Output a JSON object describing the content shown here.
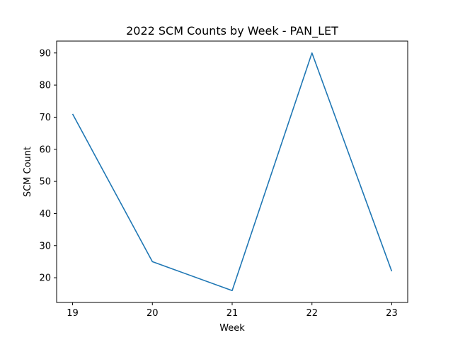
{
  "chart_data": {
    "type": "line",
    "title": "2022 SCM Counts by Week - PAN_LET",
    "xlabel": "Week",
    "ylabel": "SCM Count",
    "x": [
      19,
      20,
      21,
      22,
      23
    ],
    "series": [
      {
        "values": [
          71,
          25,
          16,
          90,
          22
        ],
        "color": "#1f77b4"
      }
    ],
    "xlim": [
      18.8,
      23.2
    ],
    "ylim": [
      12.3,
      93.7
    ],
    "xticks": [
      19,
      20,
      21,
      22,
      23
    ],
    "yticks": [
      20,
      30,
      40,
      50,
      60,
      70,
      80,
      90
    ],
    "grid": false,
    "legend": "none"
  }
}
